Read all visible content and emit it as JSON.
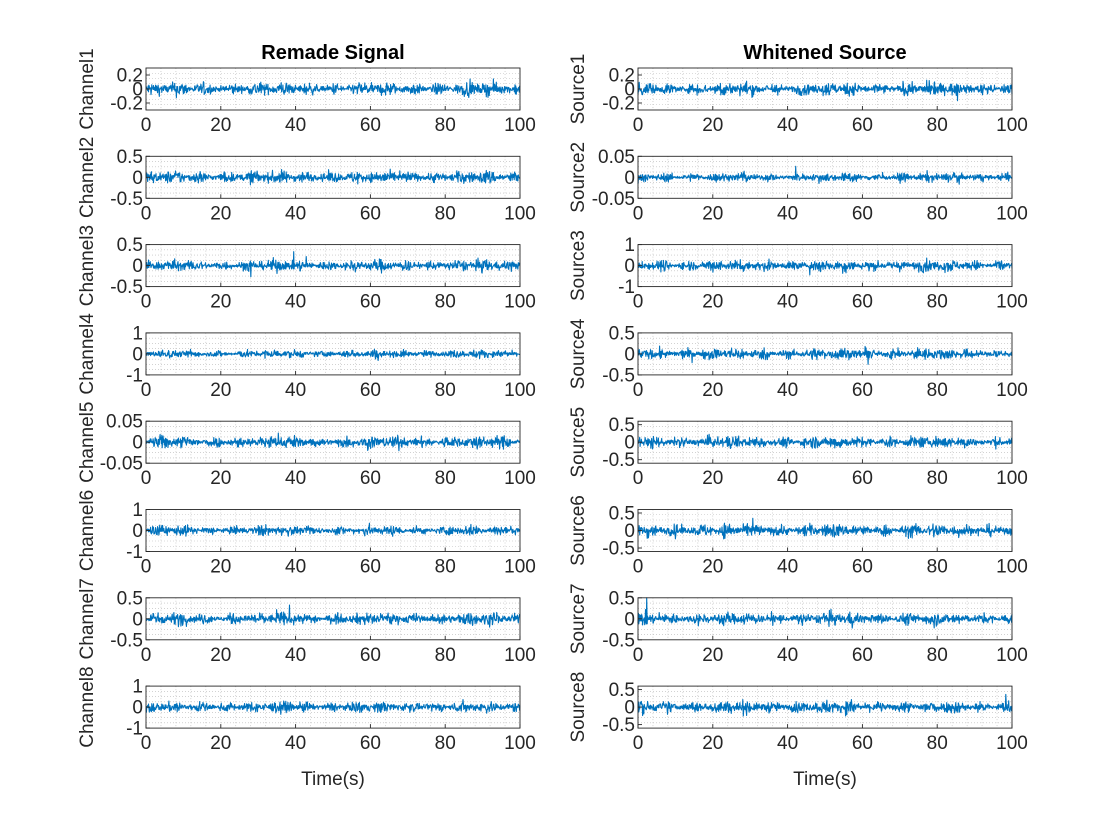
{
  "chart_data": [
    {
      "type": "line",
      "title": "Remade Signal",
      "xlabel": "Time(s)",
      "xlim": [
        0,
        100
      ],
      "xticks": [
        0,
        20,
        40,
        60,
        80,
        100
      ],
      "grid": "minor-dotted",
      "series_color": "#0072BD",
      "panels": [
        {
          "ylabel": "Channel1",
          "ylim": [
            -0.3,
            0.3
          ],
          "yticks": [
            -0.2,
            0,
            0.2
          ],
          "ytick_labels": [
            "-0.2",
            "0",
            "0.2"
          ],
          "amplitude": 0.22
        },
        {
          "ylabel": "Channel2",
          "ylim": [
            -0.5,
            0.5
          ],
          "yticks": [
            -0.5,
            0,
            0.5
          ],
          "ytick_labels": [
            "-0.5",
            "0",
            "0.5"
          ],
          "amplitude": 0.35
        },
        {
          "ylabel": "Channel3",
          "ylim": [
            -0.5,
            0.5
          ],
          "yticks": [
            -0.5,
            0,
            0.5
          ],
          "ytick_labels": [
            "-0.5",
            "0",
            "0.5"
          ],
          "amplitude": 0.32
        },
        {
          "ylabel": "Channel4",
          "ylim": [
            -1,
            1
          ],
          "yticks": [
            -1,
            0,
            1
          ],
          "ytick_labels": [
            "-1",
            "0",
            "1"
          ],
          "amplitude": 0.45
        },
        {
          "ylabel": "Channel5",
          "ylim": [
            -0.05,
            0.05
          ],
          "yticks": [
            -0.05,
            0,
            0.05
          ],
          "ytick_labels": [
            "-0.05",
            "0",
            "0.05"
          ],
          "amplitude": 0.035
        },
        {
          "ylabel": "Channel6",
          "ylim": [
            -1,
            1
          ],
          "yticks": [
            -1,
            0,
            1
          ],
          "ytick_labels": [
            "-1",
            "0",
            "1"
          ],
          "amplitude": 0.55
        },
        {
          "ylabel": "Channel7",
          "ylim": [
            -0.5,
            0.5
          ],
          "yticks": [
            -0.5,
            0,
            0.5
          ],
          "ytick_labels": [
            "-0.5",
            "0",
            "0.5"
          ],
          "amplitude": 0.33
        },
        {
          "ylabel": "Channel8",
          "ylim": [
            -1,
            1
          ],
          "yticks": [
            -1,
            0,
            1
          ],
          "ytick_labels": [
            "-1",
            "0",
            "1"
          ],
          "amplitude": 0.6
        }
      ]
    },
    {
      "type": "line",
      "title": "Whitened Source",
      "xlabel": "Time(s)",
      "xlim": [
        0,
        100
      ],
      "xticks": [
        0,
        20,
        40,
        60,
        80,
        100
      ],
      "grid": "minor-dotted",
      "series_color": "#0072BD",
      "panels": [
        {
          "ylabel": "Source1",
          "ylim": [
            -0.3,
            0.3
          ],
          "yticks": [
            -0.2,
            0,
            0.2
          ],
          "ytick_labels": [
            "-0.2",
            "0",
            "0.2"
          ],
          "amplitude": 0.22
        },
        {
          "ylabel": "Source2",
          "ylim": [
            -0.05,
            0.05
          ],
          "yticks": [
            -0.05,
            0,
            0.05
          ],
          "ytick_labels": [
            "-0.05",
            "0",
            "0.05"
          ],
          "amplitude": 0.025
        },
        {
          "ylabel": "Source3",
          "ylim": [
            -1,
            1
          ],
          "yticks": [
            -1,
            0,
            1
          ],
          "ytick_labels": [
            "-1",
            "0",
            "1"
          ],
          "amplitude": 0.65
        },
        {
          "ylabel": "Source4",
          "ylim": [
            -0.5,
            0.5
          ],
          "yticks": [
            -0.5,
            0,
            0.5
          ],
          "ytick_labels": [
            "-0.5",
            "0",
            "0.5"
          ],
          "amplitude": 0.32
        },
        {
          "ylabel": "Source5",
          "ylim": [
            -0.6,
            0.6
          ],
          "yticks": [
            -0.5,
            0,
            0.5
          ],
          "ytick_labels": [
            "-0.5",
            "0",
            "0.5"
          ],
          "amplitude": 0.4
        },
        {
          "ylabel": "Source6",
          "ylim": [
            -0.6,
            0.6
          ],
          "yticks": [
            -0.5,
            0,
            0.5
          ],
          "ytick_labels": [
            "-0.5",
            "0",
            "0.5"
          ],
          "amplitude": 0.45
        },
        {
          "ylabel": "Source7",
          "ylim": [
            -0.5,
            0.5
          ],
          "yticks": [
            -0.5,
            0,
            0.5
          ],
          "ytick_labels": [
            "-0.5",
            "0",
            "0.5"
          ],
          "amplitude": 0.35
        },
        {
          "ylabel": "Source8",
          "ylim": [
            -0.6,
            0.6
          ],
          "yticks": [
            -0.5,
            0,
            0.5
          ],
          "ytick_labels": [
            "-0.5",
            "0",
            "0.5"
          ],
          "amplitude": 0.42
        }
      ]
    }
  ]
}
